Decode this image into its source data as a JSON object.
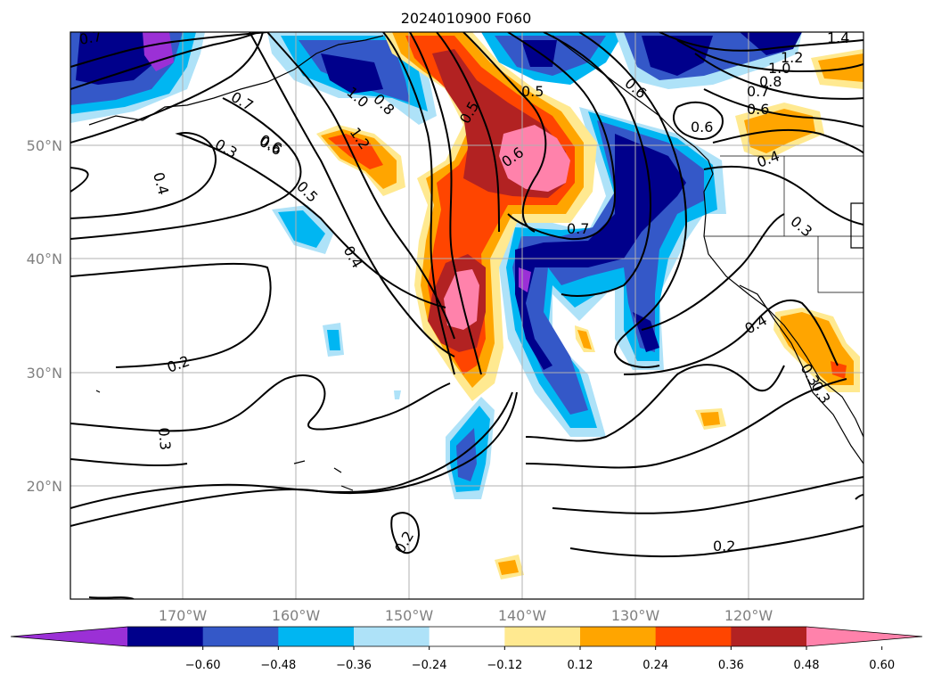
{
  "title": "2024010900 F060",
  "lat_labels": [
    "50°N",
    "40°N",
    "30°N",
    "20°N"
  ],
  "lon_labels": [
    "170°W",
    "160°W",
    "150°W",
    "140°W",
    "130°W",
    "120°W"
  ],
  "colorbar": {
    "tick_labels": [
      "−0.60",
      "−0.48",
      "−0.36",
      "−0.24",
      "−0.12",
      "0.12",
      "0.24",
      "0.36",
      "0.48",
      "0.60"
    ],
    "colors": [
      "#9b30d6",
      "#00008b",
      "#3458c8",
      "#00b6f2",
      "#aee2f8",
      "#ffffff",
      "#ffe990",
      "#ffa500",
      "#ff4500",
      "#b22222",
      "#ff82ab"
    ]
  },
  "contour_labels": [
    "0.7",
    "0.7",
    "0.6",
    "0.3",
    "0.4",
    "0.6",
    "0.5",
    "0.4",
    "0.2",
    "0.3",
    "0.2",
    "1.0",
    "0.8",
    "1.2",
    "0.5",
    "0.6",
    "0.7",
    "0.5",
    "0.6",
    "0.6",
    "0.7",
    "0.8",
    "1.0",
    "1.2",
    "1.4",
    "0.6",
    "0.4",
    "0.3",
    "0.4",
    "0.3",
    "0.3",
    "0.2"
  ]
}
